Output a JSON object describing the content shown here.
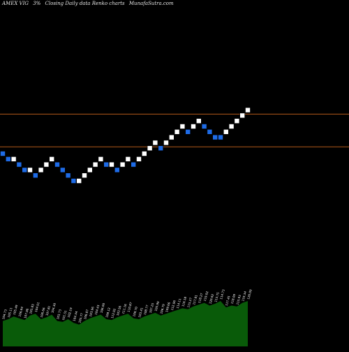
{
  "header": {
    "symbol": "AMEX  VIG",
    "change": "3%",
    "description": "Closing Daily data  Renko  charts",
    "source": "MunafaSutra.com"
  },
  "chart_data": {
    "type": "renko",
    "title": "AMEX  VIG 3% Closing Daily data  Renko  charts",
    "box_size_percent": 3,
    "colors": {
      "up": "#ffffff",
      "down": "#1e6be6",
      "background": "#000000",
      "reference_line": "#b35a1a",
      "volume": "#0a6b0a"
    },
    "bricks": [
      {
        "dir": "down",
        "level": 0
      },
      {
        "dir": "down",
        "level": -1
      },
      {
        "dir": "up",
        "level": -1
      },
      {
        "dir": "down",
        "level": -2
      },
      {
        "dir": "down",
        "level": -3
      },
      {
        "dir": "up",
        "level": -3
      },
      {
        "dir": "down",
        "level": -4
      },
      {
        "dir": "up",
        "level": -3
      },
      {
        "dir": "up",
        "level": -2
      },
      {
        "dir": "up",
        "level": -1
      },
      {
        "dir": "down",
        "level": -2
      },
      {
        "dir": "down",
        "level": -3
      },
      {
        "dir": "down",
        "level": -4
      },
      {
        "dir": "down",
        "level": -5
      },
      {
        "dir": "up",
        "level": -5
      },
      {
        "dir": "up",
        "level": -4
      },
      {
        "dir": "up",
        "level": -3
      },
      {
        "dir": "up",
        "level": -2
      },
      {
        "dir": "up",
        "level": -1
      },
      {
        "dir": "down",
        "level": -2
      },
      {
        "dir": "up",
        "level": -2
      },
      {
        "dir": "down",
        "level": -3
      },
      {
        "dir": "up",
        "level": -2
      },
      {
        "dir": "up",
        "level": -1
      },
      {
        "dir": "down",
        "level": -2
      },
      {
        "dir": "up",
        "level": -1
      },
      {
        "dir": "up",
        "level": 0
      },
      {
        "dir": "up",
        "level": 1
      },
      {
        "dir": "up",
        "level": 2
      },
      {
        "dir": "down",
        "level": 1
      },
      {
        "dir": "up",
        "level": 2
      },
      {
        "dir": "up",
        "level": 3
      },
      {
        "dir": "up",
        "level": 4
      },
      {
        "dir": "up",
        "level": 5
      },
      {
        "dir": "down",
        "level": 4
      },
      {
        "dir": "up",
        "level": 5
      },
      {
        "dir": "up",
        "level": 6
      },
      {
        "dir": "down",
        "level": 5
      },
      {
        "dir": "down",
        "level": 4
      },
      {
        "dir": "down",
        "level": 3
      },
      {
        "dir": "down",
        "level": 3
      },
      {
        "dir": "up",
        "level": 4
      },
      {
        "dir": "up",
        "level": 5
      },
      {
        "dir": "up",
        "level": 6
      },
      {
        "dir": "up",
        "level": 7
      },
      {
        "dir": "up",
        "level": 8
      }
    ],
    "reference_levels": [
      7,
      1
    ],
    "volume": [
      28,
      30,
      33,
      31,
      29,
      34,
      36,
      30,
      32,
      35,
      28,
      27,
      30,
      26,
      24,
      28,
      31,
      33,
      35,
      30,
      29,
      32,
      34,
      36,
      31,
      30,
      33,
      35,
      37,
      34,
      36,
      38,
      40,
      42,
      41,
      44,
      46,
      48,
      45,
      47,
      50,
      43,
      45,
      44,
      48,
      50
    ],
    "volume_labels": [
      "104.73",
      "105.11",
      "105.49",
      "106.64",
      "107.06",
      "105.83",
      "104.91",
      "106.66",
      "107.81",
      "104.30",
      "103.73",
      "101.51",
      "102.19",
      "104.34",
      "105.77",
      "106.87",
      "103.96",
      "104.43",
      "106.00",
      "108.12",
      "112.02",
      "103.56",
      "111.16",
      "110.87",
      "109.70",
      "103.41",
      "108.77",
      "107.25",
      "105.99",
      "106.79",
      "109.66",
      "112.96",
      "114.11",
      "116.18",
      "115.27",
      "117.81",
      "118.27",
      "119.02",
      "120.62",
      "113.75",
      "114.73",
      "117.45",
      "118.09",
      "115.93",
      "119.34",
      "120.09"
    ]
  }
}
